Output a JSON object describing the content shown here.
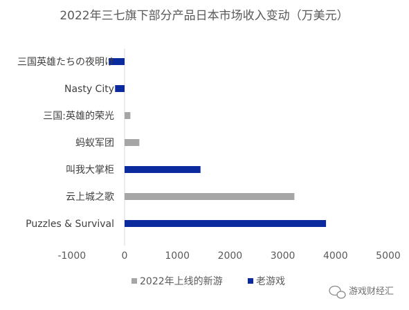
{
  "chart_data": {
    "type": "bar",
    "orientation": "horizontal",
    "title": "2022年三七旗下部分产品日本市场收入变动（万美元）",
    "categories": [
      "三国英雄たちの夜明け",
      "Nasty City",
      "三国:英雄的荣光",
      "蚂蚁军团",
      "叫我大掌柜",
      "云上城之歌",
      "Puzzles & Survival"
    ],
    "values": [
      -300,
      -180,
      110,
      280,
      1440,
      3220,
      3820
    ],
    "series_of_category": [
      "老游戏",
      "老游戏",
      "2022年上线的新游",
      "2022年上线的新游",
      "老游戏",
      "2022年上线的新游",
      "老游戏"
    ],
    "series": [
      {
        "name": "2022年上线的新游",
        "color": "#a6a6a6"
      },
      {
        "name": "老游戏",
        "color": "#0b2a9e"
      }
    ],
    "xlim": [
      -1000,
      5000
    ],
    "xticks": [
      -1000,
      0,
      1000,
      2000,
      3000,
      4000,
      5000
    ],
    "xlabel": "",
    "ylabel": "",
    "grid": false,
    "legend_position": "bottom"
  },
  "watermark": {
    "text": "游戏财经汇"
  }
}
